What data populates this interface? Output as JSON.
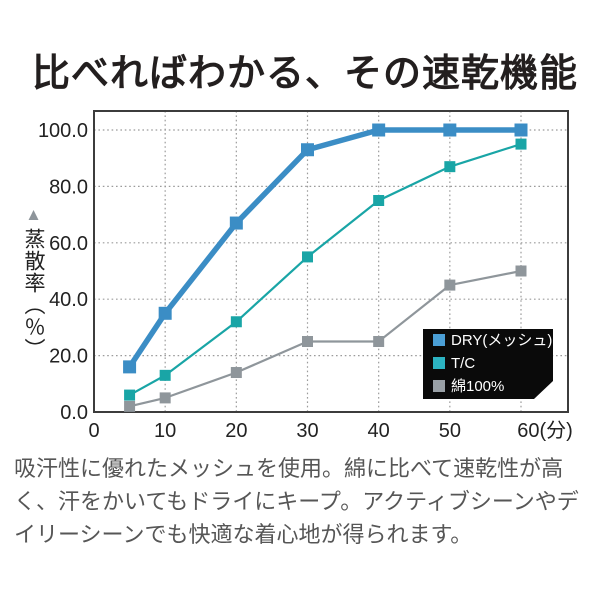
{
  "page": {
    "title": "比べればわかる、その速乾機能",
    "description": "吸汗性に優れたメッシュを使用。綿に比べて速乾性が高く、汗をかいてもドライにキープ。アクティブシーンやデイリーシーンでも快適な着心地が得られます。"
  },
  "chart_data": {
    "type": "line",
    "title": "比べればわかる、その速乾機能",
    "xlabel": "(分)",
    "ylabel": "蒸散率（％）",
    "ylabel_marker": "▲",
    "x": [
      5,
      10,
      20,
      30,
      40,
      50,
      60
    ],
    "xlim": [
      0,
      66.5
    ],
    "ylim": [
      0,
      107
    ],
    "xtick_values": [
      0,
      10,
      20,
      30,
      40,
      50,
      60
    ],
    "xtick_labels": [
      "0",
      "10",
      "20",
      "30",
      "40",
      "50",
      "60(分)"
    ],
    "ytick_values": [
      0,
      20,
      40,
      60,
      80,
      100
    ],
    "ytick_labels": [
      "0.0",
      "20.0",
      "40.0",
      "60.0",
      "80.0",
      "100.0"
    ],
    "grid": true,
    "grid_style": "dotted",
    "series": [
      {
        "id": "dry-mesh",
        "name": "DRY(メッシュ)",
        "color": "#3B8DC5",
        "legend_color": "#4B9FD6",
        "line_width": 5.5,
        "marker": "square",
        "marker_size": 13,
        "values": [
          16,
          35,
          67,
          93,
          100,
          100,
          100
        ]
      },
      {
        "id": "tc",
        "name": "T/C",
        "color": "#19A5A6",
        "legend_color": "#2CB3C2",
        "line_width": 2.2,
        "marker": "square",
        "marker_size": 11,
        "values": [
          6,
          13,
          32,
          55,
          75,
          87,
          95
        ]
      },
      {
        "id": "cotton",
        "name": "綿100%",
        "color": "#8F969B",
        "legend_color": "#99A0A6",
        "line_width": 2.2,
        "marker": "square",
        "marker_size": 11,
        "values": [
          2,
          5,
          14,
          25,
          25,
          45,
          50
        ]
      }
    ],
    "legend": {
      "position": "inside-bottom-right",
      "bg": "#0a0a0a",
      "text_color": "#ffffff",
      "items": [
        "DRY(メッシュ)",
        "T/C",
        "綿100%"
      ]
    },
    "colors": {
      "plot_border": "#3c3c3c",
      "gridline": "#9b9b9b",
      "tick_text": "#222222",
      "title_text": "#231f1f",
      "body_text": "#565656",
      "ylabel_triangle": "#8e959b"
    }
  }
}
